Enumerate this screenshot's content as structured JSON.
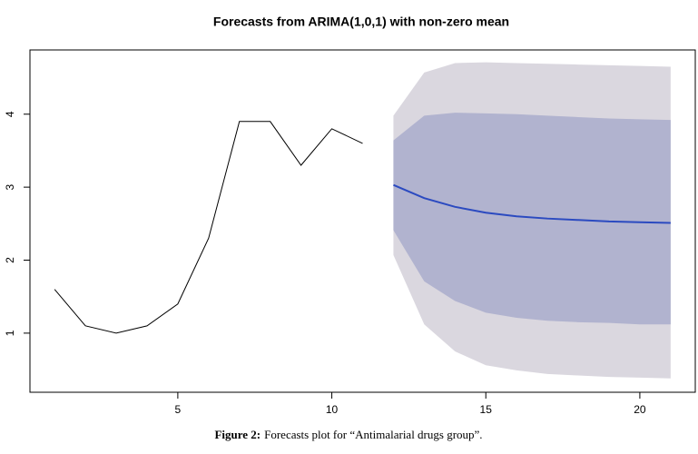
{
  "chart_data": {
    "type": "line",
    "title": "Forecasts from ARIMA(1,0,1) with non-zero mean",
    "series": [
      {
        "color": "#000000",
        "x": [
          1,
          2,
          3,
          4,
          5,
          6,
          7,
          8,
          9,
          10,
          11
        ],
        "values": [
          1.6,
          1.1,
          1.0,
          1.1,
          1.4,
          2.3,
          3.9,
          3.9,
          3.3,
          3.8,
          3.6
        ]
      },
      {
        "color": "#2b4ac0",
        "x": [
          12,
          13,
          14,
          15,
          16,
          17,
          18,
          19,
          20,
          21
        ],
        "values": [
          3.03,
          2.85,
          2.73,
          2.65,
          2.6,
          2.57,
          2.55,
          2.53,
          2.52,
          2.51
        ]
      }
    ],
    "bands": [
      {
        "color": "#dad7df",
        "x": [
          12,
          13,
          14,
          15,
          16,
          17,
          18,
          19,
          20,
          21
        ],
        "lower": [
          2.07,
          1.12,
          0.75,
          0.56,
          0.49,
          0.44,
          0.42,
          0.4,
          0.39,
          0.38
        ],
        "upper": [
          3.98,
          4.57,
          4.7,
          4.71,
          4.7,
          4.69,
          4.68,
          4.67,
          4.66,
          4.65
        ]
      },
      {
        "color": "#b1b3cf",
        "x": [
          12,
          13,
          14,
          15,
          16,
          17,
          18,
          19,
          20,
          21
        ],
        "lower": [
          2.41,
          1.71,
          1.44,
          1.28,
          1.21,
          1.17,
          1.15,
          1.14,
          1.12,
          1.12
        ],
        "upper": [
          3.64,
          3.98,
          4.02,
          4.01,
          4.0,
          3.98,
          3.96,
          3.94,
          3.93,
          3.92
        ]
      }
    ],
    "xlim": [
      0.2,
      21.8
    ],
    "xticks": [
      5,
      10,
      15,
      20
    ],
    "ylim": [
      0.19,
      4.88
    ],
    "yticks": [
      1,
      2,
      3,
      4
    ]
  },
  "caption": {
    "label": "Figure 2:",
    "text": "Forecasts plot for “Antimalarial drugs group”."
  }
}
